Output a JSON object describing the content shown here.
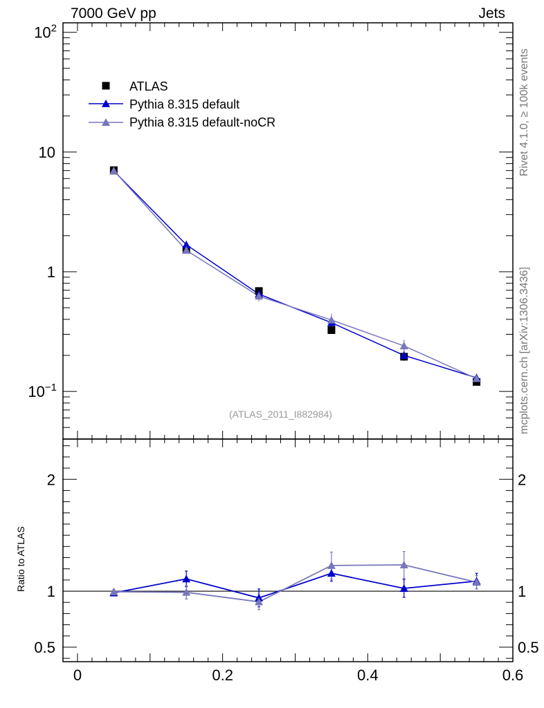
{
  "header": {
    "left": "7000 GeV pp",
    "right": "Jets"
  },
  "side": {
    "rivet": "Rivet 4.1.0, ≥ 100k events",
    "site": "mcplots.cern.ch [arXiv:1306.3436]"
  },
  "analysis_ref": "(ATLAS_2011_I882984)",
  "ratio_ylabel": "Ratio to ATLAS",
  "colors": {
    "data": "#000000",
    "default": "#0000cc",
    "nocr": "#7777bb"
  },
  "chart_data": [
    {
      "type": "line",
      "panel": "main",
      "yscale": "log",
      "xlim": [
        -0.02,
        0.6
      ],
      "ylim": [
        0.04,
        120
      ],
      "ytick_labels": [
        "10^-1",
        "1",
        "10",
        "10^2"
      ],
      "legend": {
        "position": "top-left",
        "entries": [
          "ATLAS",
          "Pythia 8.315 default",
          "Pythia 8.315 default-noCR"
        ]
      },
      "x": [
        0.05,
        0.15,
        0.25,
        0.35,
        0.45,
        0.55
      ],
      "series": [
        {
          "name": "ATLAS",
          "marker": "square",
          "values": [
            7.05,
            1.52,
            0.69,
            0.325,
            0.195,
            0.12
          ]
        },
        {
          "name": "Pythia 8.315 default",
          "marker": "triangle",
          "values": [
            6.95,
            1.68,
            0.65,
            0.375,
            0.2,
            0.13
          ],
          "errors": [
            0.15,
            0.12,
            0.05,
            0.03,
            0.02,
            0.01
          ]
        },
        {
          "name": "Pythia 8.315 default-noCR",
          "marker": "triangle",
          "values": [
            6.98,
            1.51,
            0.625,
            0.395,
            0.24,
            0.128
          ],
          "errors": [
            0.15,
            0.1,
            0.06,
            0.05,
            0.03,
            0.012
          ]
        }
      ]
    },
    {
      "type": "line",
      "panel": "ratio",
      "ylabel": "Ratio to ATLAS",
      "xlim": [
        -0.02,
        0.6
      ],
      "ylim": [
        0.37,
        2.36
      ],
      "ytick_labels": [
        "0.5",
        "1",
        "2"
      ],
      "xtick_labels": [
        "0",
        "0.2",
        "0.4",
        "0.6"
      ],
      "x": [
        0.05,
        0.15,
        0.25,
        0.35,
        0.45,
        0.55
      ],
      "series": [
        {
          "name": "Pythia 8.315 default",
          "values": [
            0.985,
            1.11,
            0.94,
            1.16,
            1.025,
            1.09
          ],
          "errors": [
            0.02,
            0.07,
            0.08,
            0.07,
            0.08,
            0.07
          ]
        },
        {
          "name": "Pythia 8.315 default-noCR",
          "values": [
            0.995,
            0.99,
            0.905,
            1.23,
            1.235,
            1.08
          ],
          "errors": [
            0.02,
            0.06,
            0.07,
            0.12,
            0.12,
            0.06
          ]
        }
      ]
    }
  ]
}
